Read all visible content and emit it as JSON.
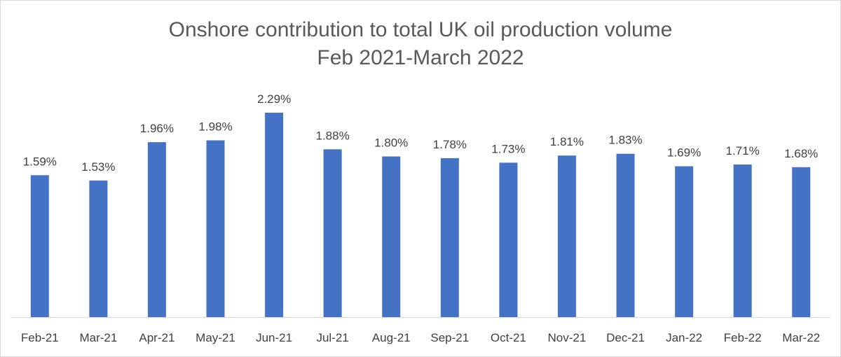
{
  "chart_data": {
    "type": "bar",
    "title": "Onshore contribution to total UK oil production volume",
    "subtitle": "Feb 2021-March 2022",
    "xlabel": "",
    "ylabel": "",
    "categories": [
      "Feb-21",
      "Mar-21",
      "Apr-21",
      "May-21",
      "Jun-21",
      "Jul-21",
      "Aug-21",
      "Sep-21",
      "Oct-21",
      "Nov-21",
      "Dec-21",
      "Jan-22",
      "Feb-22",
      "Mar-22"
    ],
    "values": [
      1.59,
      1.53,
      1.96,
      1.98,
      2.29,
      1.88,
      1.8,
      1.78,
      1.73,
      1.81,
      1.83,
      1.69,
      1.71,
      1.68
    ],
    "data_labels": [
      "1.59%",
      "1.53%",
      "1.96%",
      "1.98%",
      "2.29%",
      "1.88%",
      "1.80%",
      "1.78%",
      "1.73%",
      "1.81%",
      "1.83%",
      "1.69%",
      "1.71%",
      "1.68%"
    ],
    "ylim": [
      0,
      2.29
    ],
    "grid": false,
    "legend": "none",
    "bar_color": "#4472c4"
  }
}
